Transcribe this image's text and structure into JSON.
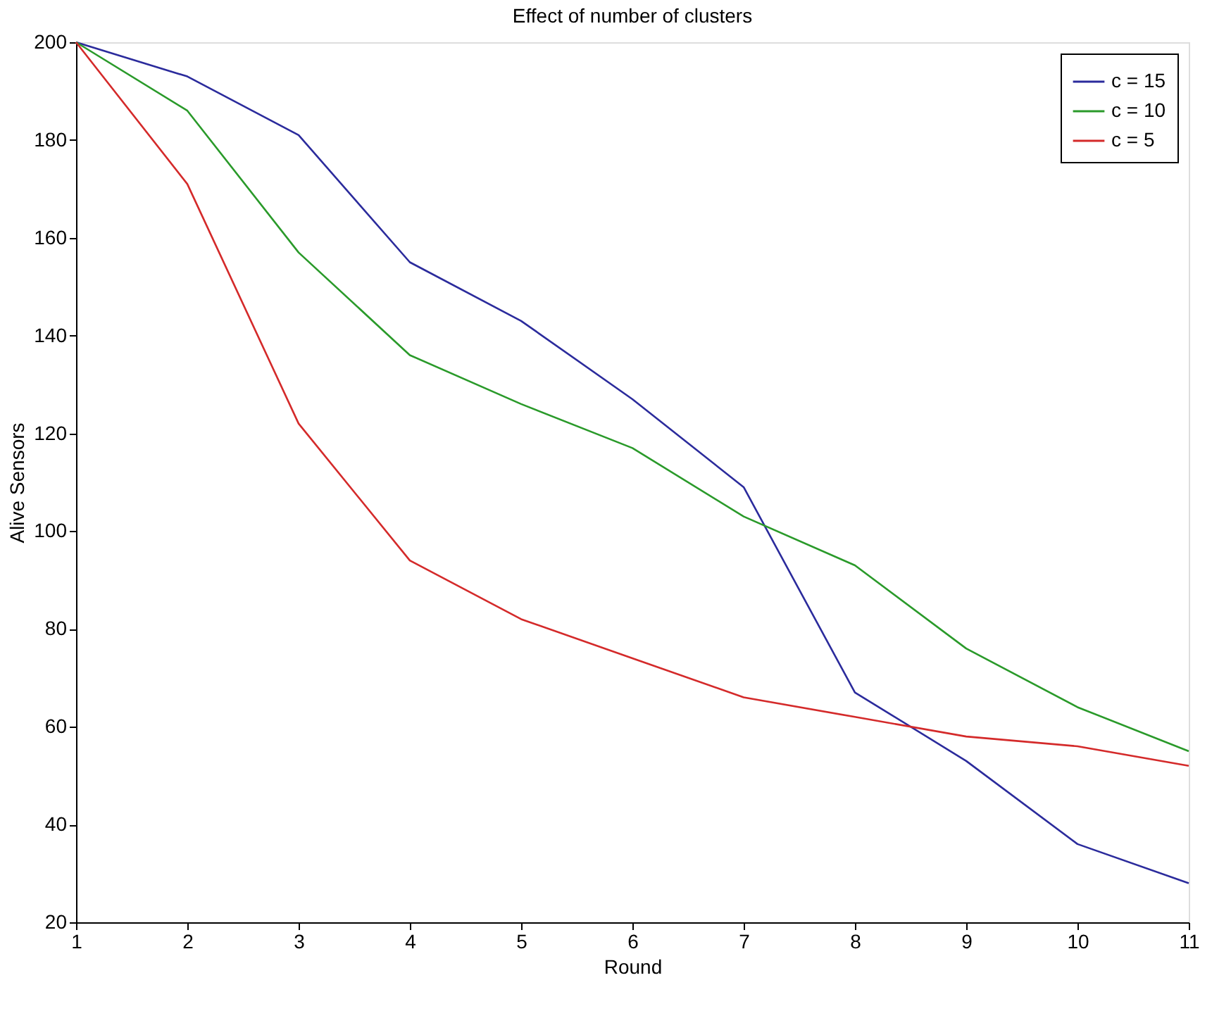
{
  "chart_data": {
    "type": "line",
    "title": "Effect of number of clusters",
    "xlabel": "Round",
    "ylabel": "Alive Sensors",
    "x": [
      1,
      2,
      3,
      4,
      5,
      6,
      7,
      8,
      9,
      10,
      11
    ],
    "series": [
      {
        "name": "c = 15",
        "color": "#2b2b9c",
        "values": [
          200,
          193,
          181,
          155,
          143,
          127,
          109,
          67,
          53,
          36,
          28
        ]
      },
      {
        "name": "c = 10",
        "color": "#2a9a2a",
        "values": [
          200,
          186,
          157,
          136,
          126,
          117,
          103,
          93,
          76,
          64,
          55
        ]
      },
      {
        "name": "c = 5",
        "color": "#d42a2a",
        "values": [
          200,
          171,
          122,
          94,
          82,
          74,
          66,
          62,
          58,
          56,
          52
        ]
      }
    ],
    "xlim": [
      1,
      11
    ],
    "xticks": [
      1,
      2,
      3,
      4,
      5,
      6,
      7,
      8,
      9,
      10,
      11
    ],
    "ylim": [
      20,
      200
    ],
    "yticks": [
      20,
      40,
      60,
      80,
      100,
      120,
      140,
      160,
      180,
      200
    ],
    "grid": false,
    "legend": "top right",
    "marker": "none",
    "line_style": "solid"
  }
}
